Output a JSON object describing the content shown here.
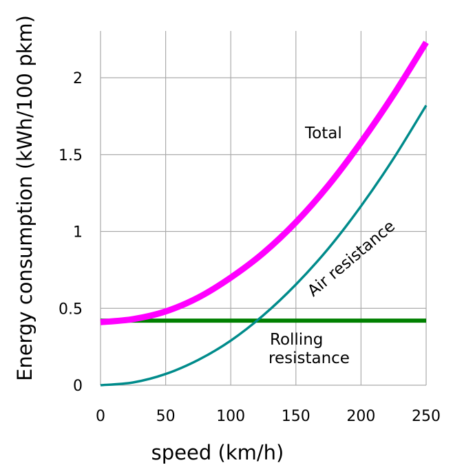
{
  "chart_data": {
    "type": "line",
    "xlabel": "speed (km/h)",
    "ylabel": "Energy consumption (kWh/100 pkm)",
    "xlim": [
      0,
      250
    ],
    "ylim": [
      0,
      2.3
    ],
    "xticks": [
      0,
      50,
      100,
      150,
      200,
      250
    ],
    "xtick_labels": [
      "0",
      "50",
      "100",
      "150",
      "200",
      "250"
    ],
    "yticks": [
      0,
      0.5,
      1,
      1.5,
      2
    ],
    "ytick_labels": [
      "0",
      "0.5",
      "1",
      "1.5",
      "2"
    ],
    "grid": "on",
    "series": [
      {
        "name": "Total",
        "color": "#ff00ff",
        "x": [
          0,
          25,
          50,
          75,
          100,
          125,
          150,
          175,
          200,
          225,
          250
        ],
        "y": [
          0.41,
          0.43,
          0.48,
          0.57,
          0.7,
          0.86,
          1.06,
          1.3,
          1.58,
          1.89,
          2.23
        ]
      },
      {
        "name": "Air resistance",
        "color": "#008b8b",
        "x": [
          0,
          25,
          50,
          75,
          100,
          125,
          150,
          175,
          200,
          225,
          250
        ],
        "y": [
          0,
          0.018,
          0.073,
          0.164,
          0.29,
          0.455,
          0.655,
          0.89,
          1.165,
          1.475,
          1.82
        ]
      },
      {
        "name": "Rolling resistance",
        "color": "#008000",
        "x": [
          0,
          250
        ],
        "y": [
          0.42,
          0.42
        ]
      }
    ],
    "annotations": [
      {
        "text": "Total"
      },
      {
        "text": "Air resistance"
      },
      {
        "text": "Rolling"
      },
      {
        "text": "resistance"
      }
    ]
  }
}
